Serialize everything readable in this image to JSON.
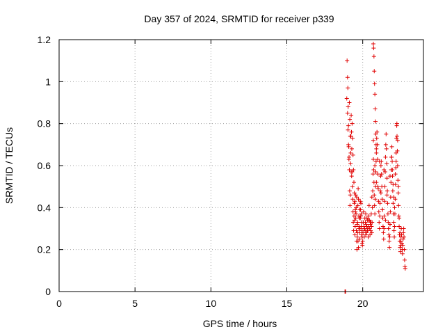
{
  "chart_data": {
    "type": "scatter",
    "title": "Day 357 of 2024, SRMTID for receiver p339",
    "xlabel": "GPS time / hours",
    "ylabel": "SRMTID / TECUs",
    "xlim": [
      0,
      24
    ],
    "ylim": [
      0,
      1.2
    ],
    "xticks": [
      0,
      5,
      10,
      15,
      20
    ],
    "xtick_labels": [
      "0",
      "5",
      "10",
      "15",
      "20"
    ],
    "yticks": [
      0,
      0.2,
      0.4,
      0.6,
      0.8,
      1.0,
      1.2
    ],
    "ytick_labels": [
      "0",
      "0.2",
      "0.4",
      "0.6",
      "0.8",
      "1",
      "1.2"
    ],
    "grid": true,
    "marker": "plus",
    "color": "#e00000",
    "x": [
      18.83,
      18.85,
      18.87,
      18.95,
      18.97,
      19.0,
      19.02,
      19.04,
      19.06,
      19.08,
      19.1,
      19.12,
      19.14,
      19.16,
      19.18,
      19.2,
      19.22,
      19.24,
      19.26,
      19.28,
      19.3,
      19.32,
      19.34,
      19.36,
      19.38,
      19.4,
      19.42,
      19.44,
      19.46,
      19.48,
      19.5,
      19.52,
      19.54,
      19.56,
      19.58,
      19.6,
      19.62,
      19.64,
      19.66,
      19.68,
      19.7,
      19.72,
      19.74,
      19.76,
      19.78,
      19.8,
      19.82,
      19.84,
      19.86,
      19.88,
      19.9,
      19.92,
      19.94,
      19.96,
      19.98,
      19.0,
      19.03,
      19.06,
      19.09,
      19.12,
      19.15,
      19.18,
      19.21,
      19.24,
      19.27,
      19.3,
      19.33,
      19.36,
      19.39,
      19.42,
      19.45,
      19.48,
      19.51,
      19.54,
      19.57,
      19.6,
      19.63,
      19.66,
      19.69,
      19.72,
      19.75,
      19.78,
      19.81,
      19.84,
      19.87,
      19.9,
      19.93,
      19.96,
      20.0,
      20.02,
      20.04,
      20.06,
      20.08,
      20.1,
      20.12,
      20.14,
      20.16,
      20.18,
      20.2,
      20.22,
      20.24,
      20.26,
      20.28,
      20.3,
      20.32,
      20.34,
      20.36,
      20.38,
      20.4,
      20.42,
      20.44,
      20.46,
      20.48,
      20.5,
      20.52,
      20.54,
      20.56,
      20.58,
      20.6,
      20.62,
      20.64,
      20.66,
      20.68,
      20.7,
      20.72,
      20.74,
      20.76,
      20.78,
      20.8,
      20.82,
      20.84,
      20.86,
      20.88,
      20.9,
      20.92,
      20.94,
      20.96,
      20.98,
      21.0,
      21.02,
      21.04,
      21.06,
      21.08,
      21.1,
      21.12,
      21.14,
      21.16,
      21.18,
      21.2,
      20.7,
      20.72,
      20.74,
      20.76,
      20.78,
      20.8,
      20.82,
      20.84,
      20.86,
      20.88,
      20.9,
      21.22,
      21.24,
      21.26,
      21.28,
      21.3,
      21.32,
      21.34,
      21.36,
      21.38,
      21.4,
      21.42,
      21.44,
      21.46,
      21.48,
      21.5,
      21.52,
      21.54,
      21.56,
      21.58,
      21.6,
      21.62,
      21.64,
      21.66,
      21.68,
      21.7,
      21.72,
      21.74,
      21.76,
      21.78,
      21.8,
      21.82,
      21.84,
      21.86,
      21.88,
      21.9,
      21.92,
      21.94,
      21.96,
      21.98,
      22.0,
      22.02,
      22.04,
      22.06,
      22.08,
      22.1,
      22.12,
      22.14,
      22.16,
      22.18,
      22.2,
      22.22,
      22.24,
      22.26,
      22.28,
      22.3,
      22.32,
      22.34,
      22.36,
      22.38,
      22.4,
      22.42,
      22.44,
      22.46,
      22.48,
      22.5,
      22.52,
      22.54,
      22.56,
      22.58,
      22.6,
      22.62,
      22.64,
      22.66,
      22.68,
      22.7,
      22.72,
      22.74,
      22.76,
      22.78,
      22.8,
      21.9,
      21.95,
      22.0,
      22.05,
      22.1,
      22.15,
      22.2,
      22.25,
      22.3,
      22.35,
      22.4,
      22.45,
      22.5,
      20.1,
      20.2,
      20.3,
      20.4,
      20.5,
      20.6,
      20.7,
      20.8,
      20.9,
      21.0,
      21.1,
      21.2,
      21.3,
      21.4,
      21.5,
      21.6,
      21.7,
      21.8
    ],
    "y": [
      0.0,
      0.0,
      0.0,
      0.92,
      1.1,
      1.02,
      0.97,
      0.88,
      0.79,
      0.69,
      0.64,
      0.58,
      0.48,
      0.41,
      0.46,
      0.61,
      0.74,
      0.84,
      0.76,
      0.68,
      0.57,
      0.5,
      0.44,
      0.38,
      0.33,
      0.29,
      0.36,
      0.42,
      0.34,
      0.27,
      0.31,
      0.38,
      0.46,
      0.37,
      0.29,
      0.24,
      0.2,
      0.26,
      0.33,
      0.41,
      0.49,
      0.44,
      0.36,
      0.31,
      0.28,
      0.25,
      0.3,
      0.35,
      0.39,
      0.42,
      0.37,
      0.33,
      0.29,
      0.26,
      0.22,
      0.85,
      0.77,
      0.7,
      0.63,
      0.9,
      0.82,
      0.74,
      0.66,
      0.57,
      0.55,
      0.8,
      0.73,
      0.65,
      0.58,
      0.52,
      0.47,
      0.43,
      0.39,
      0.35,
      0.4,
      0.45,
      0.32,
      0.28,
      0.24,
      0.21,
      0.3,
      0.35,
      0.39,
      0.43,
      0.36,
      0.31,
      0.27,
      0.23,
      0.24,
      0.28,
      0.33,
      0.38,
      0.31,
      0.26,
      0.3,
      0.35,
      0.29,
      0.33,
      0.37,
      0.32,
      0.28,
      0.31,
      0.35,
      0.3,
      0.34,
      0.29,
      0.26,
      0.31,
      0.36,
      0.41,
      0.34,
      0.3,
      0.27,
      0.32,
      0.29,
      0.33,
      0.37,
      0.31,
      0.28,
      0.33,
      0.4,
      0.48,
      0.56,
      0.63,
      0.58,
      0.52,
      0.46,
      0.41,
      0.37,
      0.44,
      0.5,
      0.57,
      0.62,
      0.68,
      0.73,
      0.76,
      0.7,
      0.63,
      0.56,
      0.49,
      0.43,
      0.38,
      0.33,
      0.3,
      0.36,
      0.42,
      0.48,
      0.55,
      0.6,
      1.18,
      1.16,
      1.12,
      1.05,
      0.99,
      0.94,
      0.87,
      0.81,
      0.75,
      0.7,
      0.66,
      0.62,
      0.56,
      0.5,
      0.44,
      0.39,
      0.35,
      0.31,
      0.28,
      0.25,
      0.3,
      0.36,
      0.43,
      0.5,
      0.57,
      0.64,
      0.7,
      0.75,
      0.68,
      0.61,
      0.54,
      0.48,
      0.42,
      0.37,
      0.33,
      0.3,
      0.27,
      0.24,
      0.21,
      0.26,
      0.32,
      0.38,
      0.45,
      0.52,
      0.58,
      0.64,
      0.69,
      0.62,
      0.55,
      0.48,
      0.42,
      0.37,
      0.33,
      0.29,
      0.26,
      0.31,
      0.37,
      0.44,
      0.51,
      0.59,
      0.66,
      0.73,
      0.79,
      0.74,
      0.67,
      0.6,
      0.53,
      0.47,
      0.41,
      0.36,
      0.31,
      0.27,
      0.24,
      0.21,
      0.19,
      0.22,
      0.26,
      0.3,
      0.27,
      0.23,
      0.2,
      0.18,
      0.22,
      0.25,
      0.28,
      0.3,
      0.26,
      0.2,
      0.15,
      0.12,
      0.11,
      0.64,
      0.58,
      0.51,
      0.45,
      0.4,
      0.56,
      0.62,
      0.8,
      0.72,
      0.5,
      0.35,
      0.28,
      0.24,
      0.3,
      0.27,
      0.29,
      0.34,
      0.33,
      0.45,
      0.72,
      0.6,
      0.52,
      0.5,
      0.62,
      0.47,
      0.39,
      0.58,
      0.34,
      0.46,
      0.3,
      0.55
    ]
  }
}
